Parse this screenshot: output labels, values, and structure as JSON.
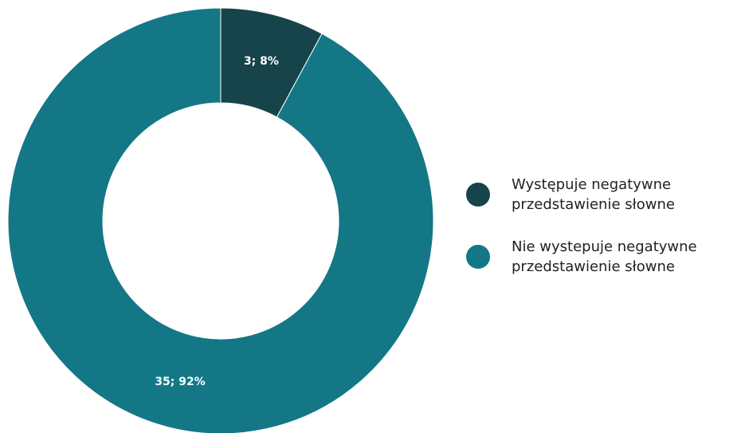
{
  "chart_data": {
    "type": "pie",
    "donut": true,
    "start_angle": "12 o'clock",
    "direction": "clockwise",
    "legend_position": "right",
    "categories": [
      "Występuje negatywne przedstawienie słowne",
      "Nie wystepuje negatywne przedstawienie słowne"
    ],
    "values": [
      3,
      35
    ],
    "percentages": [
      8,
      92
    ],
    "labels": [
      "3; 8%",
      "35; 92%"
    ],
    "colors": [
      "#17444a",
      "#137786"
    ]
  }
}
